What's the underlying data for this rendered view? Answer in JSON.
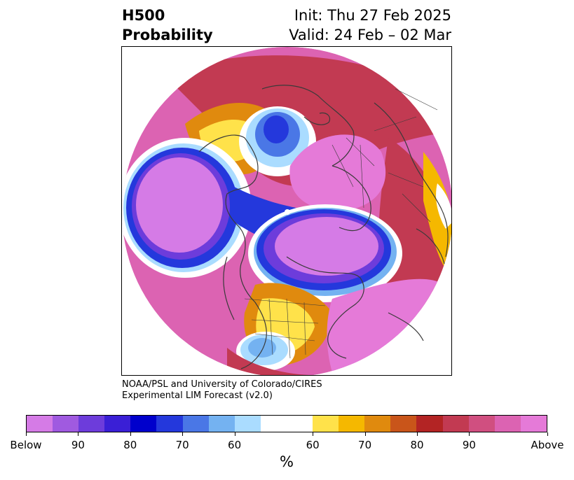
{
  "header": {
    "title_line1": "H500",
    "title_line2": "Probability",
    "init": "Init: Thu 27 Feb 2025",
    "valid": "Valid: 24 Feb – 02 Mar"
  },
  "credit": {
    "line1": "NOAA/PSL and University of Colorado/CIRES",
    "line2": "Experimental LIM Forecast (v2.0)"
  },
  "colorbar": {
    "colors": [
      "#d57be6",
      "#a05ae0",
      "#6d3cdb",
      "#3a1fd6",
      "#0000cc",
      "#2438dc",
      "#4a77e6",
      "#74b2f1",
      "#aadcff",
      "#ffffff",
      "#ffffff",
      "#ffe24a",
      "#f5b800",
      "#e08a0e",
      "#c9551a",
      "#b32424",
      "#c23a52",
      "#d04f80",
      "#dc63b2",
      "#e57ad8"
    ],
    "tick_labels": [
      "Below",
      "90",
      "80",
      "70",
      "60",
      "60",
      "70",
      "80",
      "90",
      "Above"
    ],
    "unit": "%"
  },
  "map": {
    "projection": "north polar stereographic",
    "features": [
      "coastlines",
      "country borders",
      "US state borders"
    ]
  }
}
